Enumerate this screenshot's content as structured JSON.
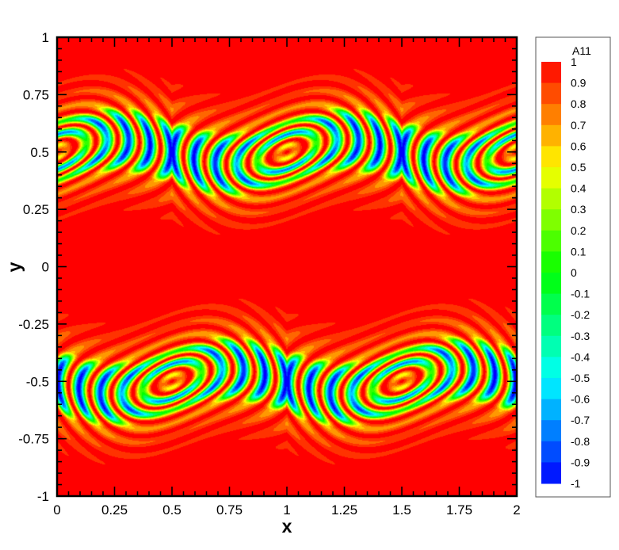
{
  "chart_data": {
    "type": "heatmap",
    "title": "",
    "xlabel": "x",
    "ylabel": "y",
    "xlim": [
      0,
      2
    ],
    "ylim": [
      -1,
      1
    ],
    "x_ticks": [
      "0",
      "0.25",
      "0.5",
      "0.75",
      "1",
      "1.25",
      "1.5",
      "1.75",
      "2"
    ],
    "y_ticks": [
      "-1",
      "-0.75",
      "-0.5",
      "-0.25",
      "0",
      "0.25",
      "0.5",
      "0.75",
      "1"
    ],
    "field": "A11",
    "colorbar": {
      "title": "A11",
      "levels": [
        "1",
        "0.9",
        "0.8",
        "0.7",
        "0.6",
        "0.5",
        "0.4",
        "0.3",
        "0.2",
        "0.1",
        "0",
        "-0.1",
        "-0.2",
        "-0.3",
        "-0.4",
        "-0.5",
        "-0.6",
        "-0.7",
        "-0.8",
        "-0.9",
        "-1"
      ],
      "range": [
        -1,
        1
      ],
      "placement": "right"
    },
    "features": {
      "background_value": 1,
      "shear_layer_centers_y": [
        0.5,
        -0.5
      ],
      "vortex_cores_x_top": [
        0,
        1,
        2
      ],
      "vortex_cores_x_bottom": [
        0.5,
        1.5
      ],
      "wave_period_x": 1
    },
    "colors": {
      "max": "#ff0000",
      "mid": "#00ff00",
      "min": "#0000ff"
    }
  }
}
